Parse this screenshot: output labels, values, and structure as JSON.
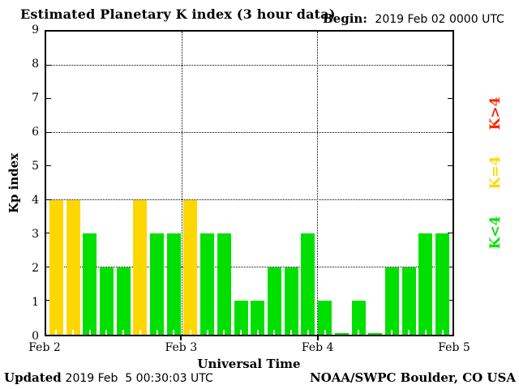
{
  "header": {
    "title": "Estimated Planetary K index (3 hour data)",
    "begin_label": "Begin:",
    "begin_value": "2019 Feb 02 0000 UTC"
  },
  "chart_data": {
    "type": "bar",
    "title": "Estimated Planetary K index (3 hour data)",
    "xlabel": "Universal Time",
    "ylabel": "Kp index",
    "ylim": [
      0,
      9
    ],
    "yticks": [
      0,
      1,
      2,
      3,
      4,
      5,
      6,
      7,
      8,
      9
    ],
    "grid_y": [
      2,
      4,
      6,
      8
    ],
    "x_day_lines": [
      0.33333,
      0.66667
    ],
    "xticks": [
      {
        "label": "Feb 2",
        "pos": 0
      },
      {
        "label": "Feb 3",
        "pos": 0.33333
      },
      {
        "label": "Feb 4",
        "pos": 0.66667
      },
      {
        "label": "Feb 5",
        "pos": 1
      }
    ],
    "bar_interval_hours": 3,
    "values": [
      4,
      4,
      3,
      2,
      2,
      4,
      3,
      3,
      4,
      3,
      3,
      1,
      1,
      2,
      2,
      3,
      1,
      0,
      1,
      0,
      2,
      2,
      3,
      3
    ],
    "colors": {
      "low": "#00E000",
      "mid": "#FFD700",
      "high": "#FF2500"
    },
    "color_rule": "green if K<4, yellow if K=4, red if K>4",
    "grid_on": true,
    "legend_position": "right-outside-rotated"
  },
  "legend": [
    {
      "label": "K>4",
      "color": "#FF2500"
    },
    {
      "label": "K=4",
      "color": "#FFD700"
    },
    {
      "label": "K<4",
      "color": "#00E000"
    }
  ],
  "footer": {
    "updated_label": "Updated",
    "updated_value": "2019 Feb  5 00:30:03 UTC",
    "source": "NOAA/SWPC Boulder, CO USA"
  }
}
